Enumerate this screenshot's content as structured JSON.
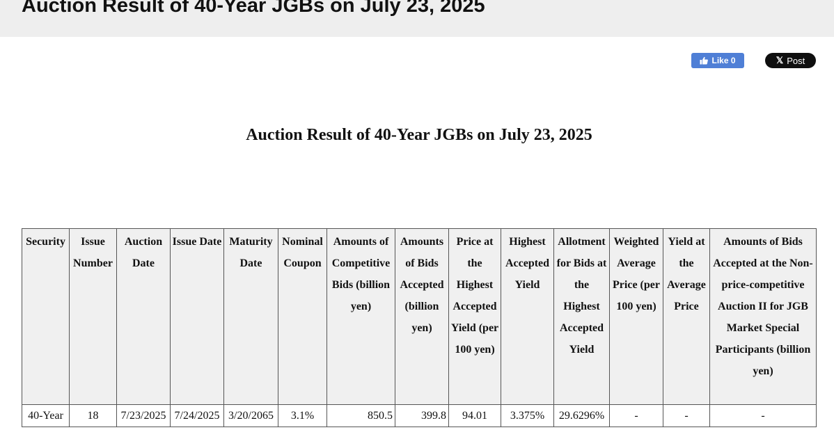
{
  "header": {
    "title": "Auction Result of 40-Year JGBs on July 23, 2025"
  },
  "social": {
    "like_label": "Like 0",
    "post_label": "Post"
  },
  "document": {
    "title": "Auction Result of 40-Year JGBs on July 23, 2025"
  },
  "table": {
    "headers": [
      "Security",
      "Issue Number",
      "Auction Date",
      "Issue Date",
      "Maturity Date",
      "Nominal Coupon",
      "Amounts of Competitive Bids (billion yen)",
      "Amounts of Bids Accepted (billion yen)",
      "Price at the Highest Accepted Yield (per 100 yen)",
      "Highest Accepted Yield",
      "Allotment for Bids at the Highest Accepted Yield",
      "Weighted Average Price (per 100 yen)",
      "Yield at the Average Price",
      "Amounts of Bids Accepted at the Non-price-competitive Auction II for JGB Market Special Participants (billion yen)"
    ],
    "rows": [
      [
        "40-Year",
        "18",
        "7/23/2025",
        "7/24/2025",
        "3/20/2065",
        "3.1%",
        "850.5",
        "399.8",
        "94.01",
        "3.375%",
        "29.6296%",
        "-",
        "-",
        "-"
      ]
    ]
  }
}
